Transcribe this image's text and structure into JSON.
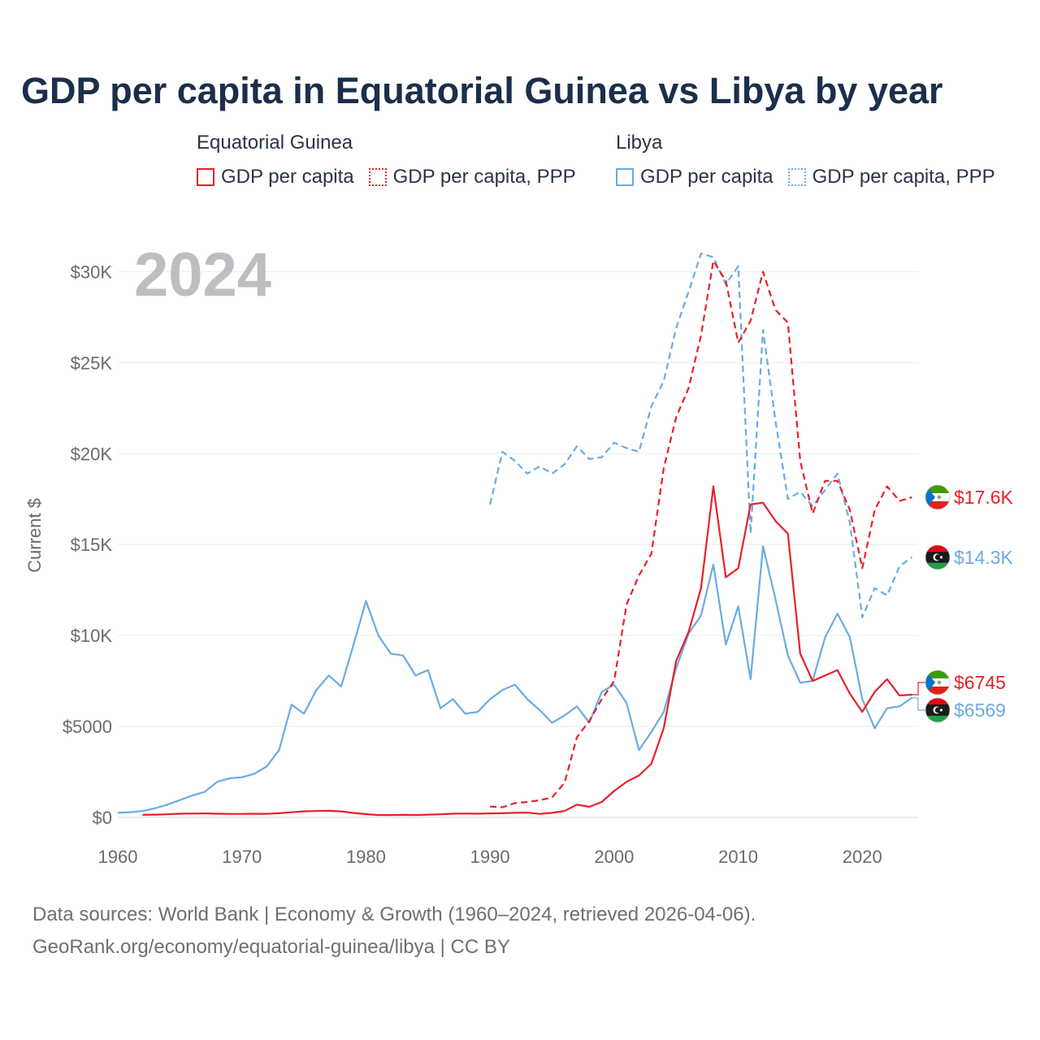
{
  "title": "GDP per capita in Equatorial Guinea vs Libya by year",
  "legend": {
    "groups": [
      {
        "name": "Equatorial Guinea",
        "items": [
          {
            "label": "GDP per capita",
            "color": "#e8202a",
            "style": "solid"
          },
          {
            "label": "GDP per capita, PPP",
            "color": "#e8202a",
            "style": "dotted"
          }
        ]
      },
      {
        "name": "Libya",
        "items": [
          {
            "label": "GDP per capita",
            "color": "#6aabe4",
            "style": "solid"
          },
          {
            "label": "GDP per capita, PPP",
            "color": "#6aabe4",
            "style": "dotted"
          }
        ]
      }
    ]
  },
  "source": {
    "line1": "Data sources: World Bank | Economy & Growth (1960–2024, retrieved 2026-04-06).",
    "line2": "GeoRank.org/economy/equatorial-guinea/libya | CC BY"
  },
  "chart_data": {
    "type": "line",
    "title": "GDP per capita in Equatorial Guinea vs Libya by year",
    "year_label": "2024",
    "ylabel": "Current $",
    "xlim": [
      1960,
      2024.5
    ],
    "ylim": [
      0,
      31000
    ],
    "x_ticks": [
      1960,
      1970,
      1980,
      1990,
      2000,
      2010,
      2020
    ],
    "y_ticks": [
      {
        "value": 0,
        "label": "$0"
      },
      {
        "value": 5000,
        "label": "$5000"
      },
      {
        "value": 10000,
        "label": "$10K"
      },
      {
        "value": 15000,
        "label": "$15K"
      },
      {
        "value": 20000,
        "label": "$20K"
      },
      {
        "value": 25000,
        "label": "$25K"
      },
      {
        "value": 30000,
        "label": "$30K"
      }
    ],
    "grid": true,
    "series": [
      {
        "name": "Libya GDP per capita",
        "color": "#6aabe4",
        "dash": "solid",
        "end_label": "$6569",
        "flag": "libya",
        "x": [
          1960,
          1961,
          1962,
          1963,
          1964,
          1965,
          1966,
          1967,
          1968,
          1969,
          1970,
          1971,
          1972,
          1973,
          1974,
          1975,
          1976,
          1977,
          1978,
          1979,
          1980,
          1981,
          1982,
          1983,
          1984,
          1985,
          1986,
          1987,
          1988,
          1989,
          1990,
          1991,
          1992,
          1993,
          1994,
          1995,
          1996,
          1997,
          1998,
          1999,
          2000,
          2001,
          2002,
          2003,
          2004,
          2005,
          2006,
          2007,
          2008,
          2009,
          2010,
          2011,
          2012,
          2013,
          2014,
          2015,
          2016,
          2017,
          2018,
          2019,
          2020,
          2021,
          2022,
          2023,
          2024
        ],
        "values": [
          250,
          280,
          350,
          500,
          700,
          950,
          1200,
          1400,
          1950,
          2150,
          2200,
          2400,
          2800,
          3700,
          6200,
          5700,
          7000,
          7800,
          7200,
          9500,
          11900,
          10000,
          9000,
          8900,
          7800,
          8100,
          6000,
          6500,
          5700,
          5800,
          6500,
          7000,
          7300,
          6500,
          5900,
          5200,
          5600,
          6100,
          5200,
          6900,
          7300,
          6300,
          3700,
          4700,
          5800,
          8200,
          10100,
          11100,
          13900,
          9500,
          11600,
          7600,
          14900,
          12000,
          8900,
          7400,
          7500,
          9900,
          11200,
          9900,
          6500,
          4900,
          6000,
          6100,
          6569
        ]
      },
      {
        "name": "Libya GDP per capita, PPP",
        "color": "#6aabe4",
        "dash": "dashed",
        "end_label": "$14.3K",
        "flag": "libya",
        "x": [
          1990,
          1991,
          1992,
          1993,
          1994,
          1995,
          1996,
          1997,
          1998,
          1999,
          2000,
          2001,
          2002,
          2003,
          2004,
          2005,
          2006,
          2007,
          2008,
          2009,
          2010,
          2011,
          2012,
          2013,
          2014,
          2015,
          2016,
          2017,
          2018,
          2019,
          2020,
          2021,
          2022,
          2023,
          2024
        ],
        "values": [
          17200,
          20100,
          19600,
          18900,
          19300,
          18900,
          19400,
          20400,
          19700,
          19800,
          20600,
          20300,
          20100,
          22600,
          24000,
          26900,
          28900,
          31000,
          30800,
          29300,
          30300,
          15600,
          26800,
          21800,
          17500,
          17900,
          17100,
          18000,
          18900,
          16200,
          11000,
          12600,
          12200,
          13800,
          14300
        ]
      },
      {
        "name": "Equatorial Guinea GDP per capita",
        "color": "#e8202a",
        "dash": "solid",
        "end_label": "$6745",
        "flag": "equatorial-guinea",
        "x": [
          1962,
          1963,
          1964,
          1965,
          1966,
          1967,
          1968,
          1969,
          1970,
          1971,
          1972,
          1973,
          1974,
          1975,
          1976,
          1977,
          1978,
          1979,
          1980,
          1981,
          1982,
          1983,
          1984,
          1985,
          1986,
          1987,
          1988,
          1989,
          1990,
          1991,
          1992,
          1993,
          1994,
          1995,
          1996,
          1997,
          1998,
          1999,
          2000,
          2001,
          2002,
          2003,
          2004,
          2005,
          2006,
          2007,
          2008,
          2009,
          2010,
          2011,
          2012,
          2013,
          2014,
          2015,
          2016,
          2017,
          2018,
          2019,
          2020,
          2021,
          2022,
          2023,
          2024
        ],
        "values": [
          140,
          150,
          170,
          200,
          210,
          220,
          200,
          190,
          190,
          200,
          190,
          230,
          280,
          330,
          350,
          360,
          330,
          240,
          180,
          130,
          130,
          140,
          130,
          150,
          170,
          200,
          210,
          200,
          220,
          230,
          250,
          260,
          190,
          250,
          350,
          700,
          580,
          850,
          1450,
          1950,
          2300,
          2950,
          4900,
          8600,
          10200,
          12600,
          18200,
          13200,
          13700,
          17200,
          17300,
          16300,
          15600,
          9000,
          7500,
          7800,
          8100,
          6800,
          5800,
          6900,
          7600,
          6700,
          6745
        ]
      },
      {
        "name": "Equatorial Guinea GDP per capita, PPP",
        "color": "#e8202a",
        "dash": "dashed",
        "end_label": "$17.6K",
        "flag": "equatorial-guinea",
        "x": [
          1990,
          1991,
          1992,
          1993,
          1994,
          1995,
          1996,
          1997,
          1998,
          1999,
          2000,
          2001,
          2002,
          2003,
          2004,
          2005,
          2006,
          2007,
          2008,
          2009,
          2010,
          2011,
          2012,
          2013,
          2014,
          2015,
          2016,
          2017,
          2018,
          2019,
          2020,
          2021,
          2022,
          2023,
          2024
        ],
        "values": [
          600,
          560,
          780,
          850,
          940,
          1100,
          1900,
          4400,
          5300,
          6500,
          7500,
          11700,
          13300,
          14500,
          19200,
          22000,
          23600,
          26500,
          30600,
          29500,
          26100,
          27300,
          30000,
          27900,
          27200,
          19600,
          16700,
          18500,
          18500,
          16900,
          13700,
          16900,
          18200,
          17400,
          17600
        ]
      }
    ]
  }
}
